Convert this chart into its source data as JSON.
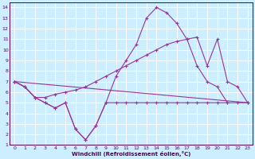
{
  "background_color": "#cceeff",
  "grid_color": "#ffffff",
  "line_color": "#993399",
  "xlabel": "Windchill (Refroidissement éolien,°C)",
  "xlim": [
    -0.5,
    23.5
  ],
  "ylim": [
    1,
    14.5
  ],
  "xticks": [
    0,
    1,
    2,
    3,
    4,
    5,
    6,
    7,
    8,
    9,
    10,
    11,
    12,
    13,
    14,
    15,
    16,
    17,
    18,
    19,
    20,
    21,
    22,
    23
  ],
  "yticks": [
    1,
    2,
    3,
    4,
    5,
    6,
    7,
    8,
    9,
    10,
    11,
    12,
    13,
    14
  ],
  "line1_x": [
    0,
    1,
    2,
    3,
    4,
    5,
    6,
    7,
    8,
    9,
    10,
    11,
    12,
    13,
    14,
    15,
    16,
    17,
    18,
    19,
    20,
    21,
    22,
    23
  ],
  "line1_y": [
    7.0,
    6.5,
    5.5,
    5.0,
    4.5,
    5.0,
    2.5,
    1.5,
    2.8,
    5.0,
    5.0,
    5.0,
    5.0,
    5.0,
    5.0,
    5.0,
    5.0,
    5.0,
    5.0,
    5.0,
    5.0,
    5.0,
    5.0,
    5.0
  ],
  "line2_x": [
    0,
    1,
    2,
    3,
    4,
    5,
    6,
    7,
    8,
    9,
    10,
    11,
    12,
    13,
    14,
    15,
    16,
    17,
    18,
    19,
    20,
    21
  ],
  "line2_y": [
    7.0,
    6.5,
    5.5,
    5.0,
    4.5,
    5.0,
    2.5,
    1.5,
    2.8,
    5.0,
    7.5,
    9.0,
    10.5,
    13.0,
    14.0,
    13.5,
    12.5,
    11.0,
    8.5,
    7.0,
    6.5,
    5.0
  ],
  "line3_x": [
    0,
    23
  ],
  "line3_y": [
    7.0,
    5.0
  ],
  "line4_x": [
    0,
    1,
    2,
    3,
    4,
    5,
    6,
    7,
    8,
    9,
    10,
    11,
    12,
    13,
    14,
    15,
    16,
    17,
    18,
    19,
    20,
    21,
    22,
    23
  ],
  "line4_y": [
    7.0,
    6.5,
    5.5,
    5.5,
    5.8,
    6.0,
    6.2,
    6.5,
    7.0,
    7.5,
    8.0,
    8.5,
    9.0,
    9.5,
    10.0,
    10.5,
    10.8,
    11.0,
    11.2,
    8.5,
    11.0,
    7.0,
    6.5,
    5.0
  ]
}
